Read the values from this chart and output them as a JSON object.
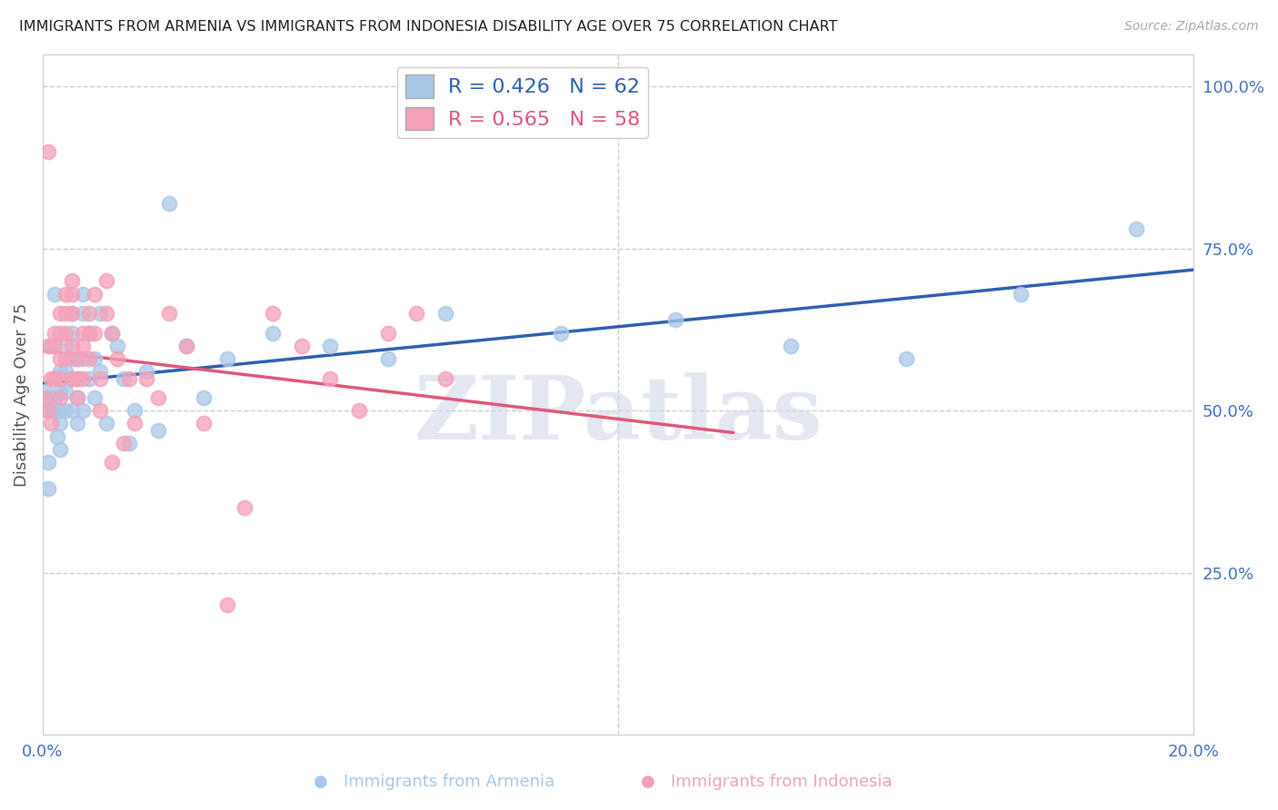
{
  "title": "IMMIGRANTS FROM ARMENIA VS IMMIGRANTS FROM INDONESIA DISABILITY AGE OVER 75 CORRELATION CHART",
  "source": "Source: ZipAtlas.com",
  "ylabel": "Disability Age Over 75",
  "xlim": [
    0.0,
    0.2
  ],
  "ylim": [
    0.0,
    1.05
  ],
  "xtick_positions": [
    0.0,
    0.05,
    0.1,
    0.15,
    0.2
  ],
  "xtick_labels": [
    "0.0%",
    "",
    "",
    "",
    "20.0%"
  ],
  "ytick_right": [
    0.25,
    0.5,
    0.75,
    1.0
  ],
  "ytick_right_labels": [
    "25.0%",
    "50.0%",
    "75.0%",
    "100.0%"
  ],
  "armenia_R": 0.426,
  "armenia_N": 62,
  "indonesia_R": 0.565,
  "indonesia_N": 58,
  "armenia_color": "#a8c8e8",
  "indonesia_color": "#f4a0b8",
  "armenia_line_color": "#3060b0",
  "indonesia_line_color": "#e05878",
  "legend_label_armenia": "Immigrants from Armenia",
  "legend_label_indonesia": "Immigrants from Indonesia",
  "armenia_x": [
    0.0005,
    0.001,
    0.001,
    0.001,
    0.0015,
    0.0015,
    0.002,
    0.002,
    0.002,
    0.002,
    0.0025,
    0.0025,
    0.003,
    0.003,
    0.003,
    0.003,
    0.003,
    0.004,
    0.004,
    0.004,
    0.004,
    0.005,
    0.005,
    0.005,
    0.005,
    0.005,
    0.006,
    0.006,
    0.006,
    0.006,
    0.007,
    0.007,
    0.007,
    0.007,
    0.008,
    0.008,
    0.009,
    0.009,
    0.01,
    0.01,
    0.011,
    0.012,
    0.013,
    0.014,
    0.015,
    0.016,
    0.018,
    0.02,
    0.022,
    0.025,
    0.028,
    0.032,
    0.04,
    0.05,
    0.06,
    0.07,
    0.09,
    0.11,
    0.13,
    0.15,
    0.17,
    0.19
  ],
  "armenia_y": [
    0.53,
    0.42,
    0.5,
    0.38,
    0.52,
    0.6,
    0.5,
    0.52,
    0.55,
    0.68,
    0.5,
    0.46,
    0.56,
    0.53,
    0.5,
    0.48,
    0.44,
    0.6,
    0.56,
    0.53,
    0.5,
    0.65,
    0.62,
    0.58,
    0.55,
    0.5,
    0.58,
    0.55,
    0.52,
    0.48,
    0.68,
    0.65,
    0.58,
    0.5,
    0.62,
    0.55,
    0.58,
    0.52,
    0.65,
    0.56,
    0.48,
    0.62,
    0.6,
    0.55,
    0.45,
    0.5,
    0.56,
    0.47,
    0.82,
    0.6,
    0.52,
    0.58,
    0.62,
    0.6,
    0.58,
    0.65,
    0.62,
    0.64,
    0.6,
    0.58,
    0.68,
    0.78
  ],
  "indonesia_x": [
    0.0005,
    0.001,
    0.001,
    0.001,
    0.0015,
    0.0015,
    0.002,
    0.002,
    0.002,
    0.003,
    0.003,
    0.003,
    0.003,
    0.003,
    0.004,
    0.004,
    0.004,
    0.004,
    0.005,
    0.005,
    0.005,
    0.005,
    0.005,
    0.006,
    0.006,
    0.006,
    0.007,
    0.007,
    0.007,
    0.008,
    0.008,
    0.008,
    0.009,
    0.009,
    0.01,
    0.01,
    0.011,
    0.011,
    0.012,
    0.012,
    0.013,
    0.014,
    0.015,
    0.016,
    0.018,
    0.02,
    0.022,
    0.025,
    0.028,
    0.032,
    0.035,
    0.04,
    0.045,
    0.05,
    0.055,
    0.06,
    0.065,
    0.07
  ],
  "indonesia_y": [
    0.52,
    0.9,
    0.5,
    0.6,
    0.55,
    0.48,
    0.6,
    0.55,
    0.62,
    0.65,
    0.62,
    0.58,
    0.55,
    0.52,
    0.68,
    0.65,
    0.62,
    0.58,
    0.7,
    0.68,
    0.65,
    0.6,
    0.55,
    0.58,
    0.55,
    0.52,
    0.62,
    0.6,
    0.55,
    0.65,
    0.62,
    0.58,
    0.68,
    0.62,
    0.55,
    0.5,
    0.7,
    0.65,
    0.62,
    0.42,
    0.58,
    0.45,
    0.55,
    0.48,
    0.55,
    0.52,
    0.65,
    0.6,
    0.48,
    0.2,
    0.35,
    0.65,
    0.6,
    0.55,
    0.5,
    0.62,
    0.65,
    0.55
  ],
  "watermark_text": "ZIPatlas",
  "watermark_color": "#d0d8e8",
  "background_color": "#ffffff",
  "grid_color": "#cccccc",
  "grid_color_vert": "#cccccc"
}
